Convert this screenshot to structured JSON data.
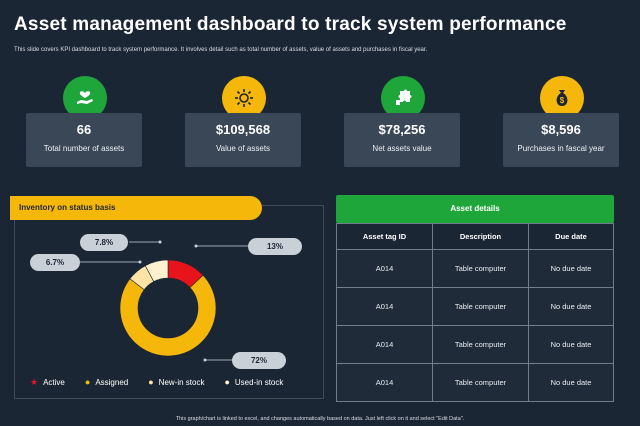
{
  "header": {
    "title": "Asset management dashboard to track system performance",
    "subtitle": "This slide covers KPI dashboard to track system performance. It involves detail such as total number of assets, value of assets and purchases in fiscal year."
  },
  "kpis": [
    {
      "value": "66",
      "label": "Total number of assets",
      "icon": "hand-heart-icon",
      "color": "#1fa63a"
    },
    {
      "value": "$109,568",
      "label": "Value of assets",
      "icon": "sun-gear-icon",
      "color": "#f5b70a"
    },
    {
      "value": "$78,256",
      "label": "Net assets value",
      "icon": "puzzle-icon",
      "color": "#1fa63a"
    },
    {
      "value": "$8,596",
      "label": "Purchases in fascal year",
      "icon": "money-bag-icon",
      "color": "#f5b70a"
    }
  ],
  "inventory": {
    "title": "Inventory on status basis",
    "labels": {
      "active": "13%",
      "assigned": "72%",
      "new_in_stock": "6.7%",
      "used_in_stock": "7.8%"
    },
    "legend": [
      "Active",
      "Assigned",
      "New-in stock",
      "Used-in stock"
    ]
  },
  "chart_data": {
    "type": "pie",
    "title": "Inventory on status basis",
    "categories": [
      "Active",
      "Assigned",
      "New-in stock",
      "Used-in stock"
    ],
    "values": [
      13,
      72,
      6.7,
      7.8
    ],
    "colors": [
      "#e8141c",
      "#f5b70a",
      "#fce3a6",
      "#fff1cf"
    ]
  },
  "asset_details": {
    "title": "Asset details",
    "columns": [
      "Asset tag ID",
      "Description",
      "Due date"
    ],
    "rows": [
      [
        "A014",
        "Table computer",
        "No due date"
      ],
      [
        "A014",
        "Table computer",
        "No due date"
      ],
      [
        "A014",
        "Table computer",
        "No due date"
      ],
      [
        "A014",
        "Table computer",
        "No due date"
      ]
    ]
  },
  "footer": "This graph/chart is linked to excel, and changes automatically based on data. Just left click on it and select \"Edit Data\"."
}
